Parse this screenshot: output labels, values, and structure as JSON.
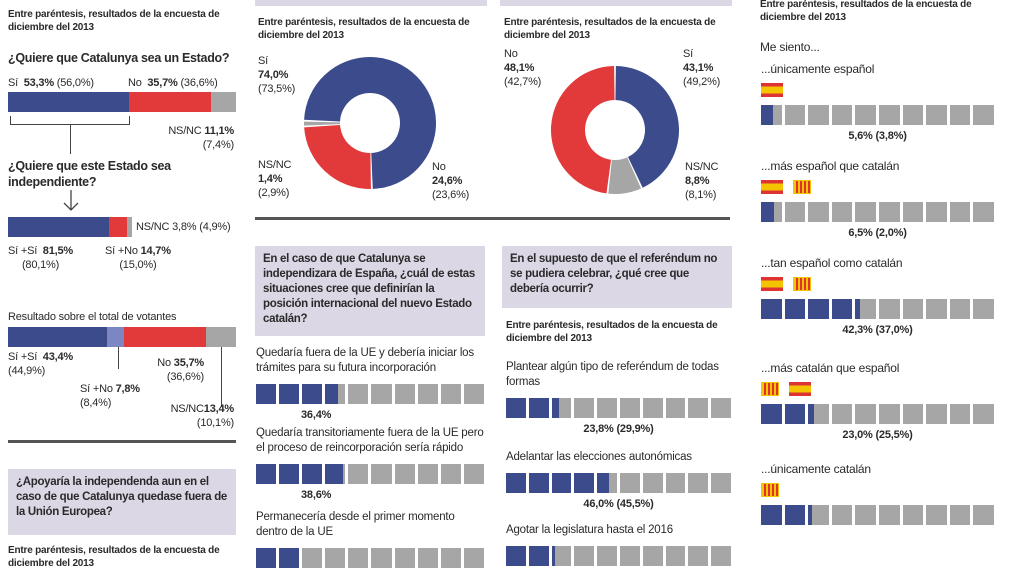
{
  "note": "Entre paréntesis, resultados de la encuesta de diciembre del 2013",
  "col1": {
    "q1": "¿Quiere que Catalunya sea un Estado?",
    "q2": "¿Quiere que este Estado sea independiente?",
    "total_title": "Resultado sobre el total de votantes",
    "q3": "¿Apoyaría la independenda aun en el caso de que Catalunya quedase fuera de la Unión Europea?"
  },
  "col2": {
    "q": "En el caso de que Catalunya se independizara de España, ¿cuál de estas situaciones cree que definirían la posición internacional del nuevo Estado catalán?"
  },
  "col3": {
    "q": "En el supuesto de que el referéndum no se pudiera celebrar, ¿qué cree que debería ocurrir?"
  },
  "col4": {
    "intro": "Me siento..."
  },
  "colors": {
    "blue": "#3b4b8c",
    "red": "#e2393a",
    "gray": "#a6a6a6",
    "light_blue": "#7b86c2",
    "box": "#dbd7e5"
  },
  "chart_data": [
    {
      "type": "bar",
      "stacked": true,
      "title": "¿Quiere que Catalunya sea un Estado?",
      "series": [
        {
          "name": "Sí",
          "value": 53.3,
          "label": "53,3%",
          "prev": "(56,0%)",
          "color": "#3b4b8c"
        },
        {
          "name": "No",
          "value": 35.7,
          "label": "35,7%",
          "prev": "(36,6%)",
          "color": "#e2393a"
        },
        {
          "name": "NS/NC",
          "value": 11.1,
          "label": "11,1%",
          "prev": "(7,4%)",
          "color": "#a6a6a6"
        }
      ]
    },
    {
      "type": "bar",
      "stacked": true,
      "title": "¿Quiere que este Estado sea independiente?",
      "series": [
        {
          "name": "Sí +Sí",
          "value": 81.5,
          "label": "81,5%",
          "prev": "(80,1%)",
          "color": "#3b4b8c"
        },
        {
          "name": "Sí +No",
          "value": 14.7,
          "label": "14,7%",
          "prev": "(15,0%)",
          "color": "#e2393a"
        },
        {
          "name": "NS/NC",
          "value": 3.8,
          "label": "3,8%",
          "prev": "(4,9%)",
          "color": "#a6a6a6"
        }
      ]
    },
    {
      "type": "bar",
      "stacked": true,
      "title": "Resultado sobre el total de votantes",
      "series": [
        {
          "name": "Sí +Sí",
          "value": 43.4,
          "label": "43,4%",
          "prev": "(44,9%)",
          "color": "#3b4b8c"
        },
        {
          "name": "Sí +No",
          "value": 7.8,
          "label": "7,8%",
          "prev": "(8,4%)",
          "color": "#7b86c2"
        },
        {
          "name": "No",
          "value": 35.7,
          "label": "35,7%",
          "prev": "(36,6%)",
          "color": "#e2393a"
        },
        {
          "name": "NS/NC",
          "value": 13.4,
          "label": "13,4%",
          "prev": "(10,1%)",
          "color": "#a6a6a6"
        }
      ]
    },
    {
      "type": "pie",
      "donut": true,
      "series": [
        {
          "name": "Sí",
          "value": 74.0,
          "label": "74,0%",
          "prev": "(73,5%)",
          "color": "#3b4b8c"
        },
        {
          "name": "No",
          "value": 24.6,
          "label": "24,6%",
          "prev": "(23,6%)",
          "color": "#e2393a"
        },
        {
          "name": "NS/NC",
          "value": 1.4,
          "label": "1,4%",
          "prev": "(2,9%)",
          "color": "#a6a6a6"
        }
      ]
    },
    {
      "type": "pie",
      "donut": true,
      "series": [
        {
          "name": "Sí",
          "value": 43.1,
          "label": "43,1%",
          "prev": "(49,2%)",
          "color": "#3b4b8c"
        },
        {
          "name": "NS/NC",
          "value": 8.8,
          "label": "8,8%",
          "prev": "(8,1%)",
          "color": "#a6a6a6"
        },
        {
          "name": "No",
          "value": 48.1,
          "label": "48,1%",
          "prev": "(42,7%)",
          "color": "#e2393a"
        }
      ]
    },
    {
      "type": "bar",
      "segmented": true,
      "title": "En el caso de que Catalunya se independizara de España...",
      "items": [
        {
          "name": "Quedaría fuera de la UE y debería iniciar los trámites para su futura incorporación",
          "value": 36.4,
          "label": "36,4%"
        },
        {
          "name": "Quedaría transitoriamente fuera de la UE pero el proceso de reincorporación sería rápido",
          "value": 38.6,
          "label": "38,6%"
        },
        {
          "name": "Permanecería desde el primer momento dentro de la UE",
          "value": 20
        }
      ]
    },
    {
      "type": "bar",
      "segmented": true,
      "title": "En el supuesto de que el referéndum no se pudiera celebrar...",
      "items": [
        {
          "name": "Plantear algún tipo de referéndum de todas formas",
          "value": 23.8,
          "label": "23,8%",
          "prev": "(29,9%)"
        },
        {
          "name": "Adelantar las elecciones autonómicas",
          "value": 46.0,
          "label": "46,0%",
          "prev": "(45,5%)"
        },
        {
          "name": "Agotar la legislatura hasta el 2016",
          "value": 21.5
        }
      ]
    },
    {
      "type": "bar",
      "segmented": true,
      "title": "Me siento...",
      "items": [
        {
          "name": "...únicamente español",
          "value": 5.6,
          "label": "5,6%",
          "prev": "(3,8%)",
          "flags": [
            "es"
          ]
        },
        {
          "name": "...más español que catalán",
          "value": 6.5,
          "label": "6,5%",
          "prev": "(2,0%)",
          "flags": [
            "es",
            "cat"
          ]
        },
        {
          "name": "...tan español como catalán",
          "value": 42.3,
          "label": "42,3%",
          "prev": "(37,0%)",
          "flags": [
            "es",
            "cat"
          ]
        },
        {
          "name": "...más catalán que español",
          "value": 23.0,
          "label": "23,0%",
          "prev": "(25,5%)",
          "flags": [
            "cat",
            "es"
          ]
        },
        {
          "name": "...únicamente catalán",
          "value": 22,
          "flags": [
            "cat"
          ]
        }
      ]
    }
  ]
}
